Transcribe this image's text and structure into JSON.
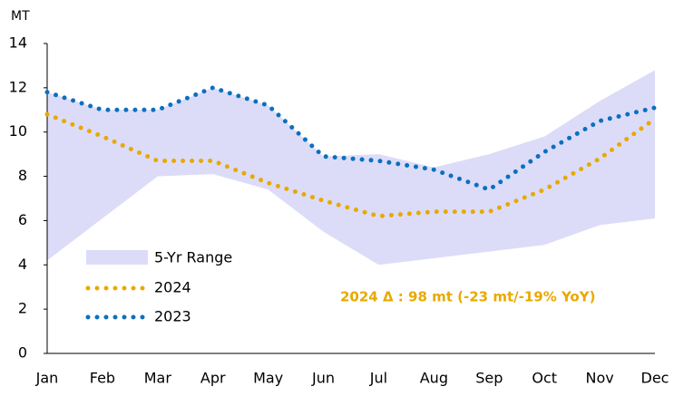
{
  "chart_data": {
    "type": "line",
    "y_label": "MT",
    "categories": [
      "Jan",
      "Feb",
      "Mar",
      "Apr",
      "May",
      "Jun",
      "Jul",
      "Aug",
      "Sep",
      "Oct",
      "Nov",
      "Dec"
    ],
    "range": {
      "name": "5-Yr Range",
      "color": "#dcdcf9",
      "upper": [
        11.8,
        11.0,
        11.0,
        12.0,
        11.2,
        8.9,
        9.0,
        8.4,
        9.0,
        9.8,
        11.4,
        12.8
      ],
      "lower": [
        4.2,
        6.1,
        8.0,
        8.1,
        7.4,
        5.5,
        4.0,
        4.3,
        4.6,
        4.9,
        5.8,
        6.1
      ]
    },
    "series": [
      {
        "name": "2024",
        "color": "#e8a900",
        "values": [
          10.8,
          9.8,
          8.7,
          8.7,
          7.7,
          6.9,
          6.2,
          6.4,
          6.4,
          7.4,
          8.8,
          10.6
        ]
      },
      {
        "name": "2023",
        "color": "#0a70bf",
        "values": [
          11.8,
          11.0,
          11.0,
          12.0,
          11.2,
          8.9,
          8.7,
          8.3,
          7.4,
          9.1,
          10.5,
          11.1
        ]
      }
    ],
    "annotation": "2024 Δ : 98 mt (-23 mt/-19% YoY)",
    "ylim": [
      0,
      14
    ],
    "yticks": [
      0,
      2,
      4,
      6,
      8,
      10,
      12,
      14
    ]
  }
}
